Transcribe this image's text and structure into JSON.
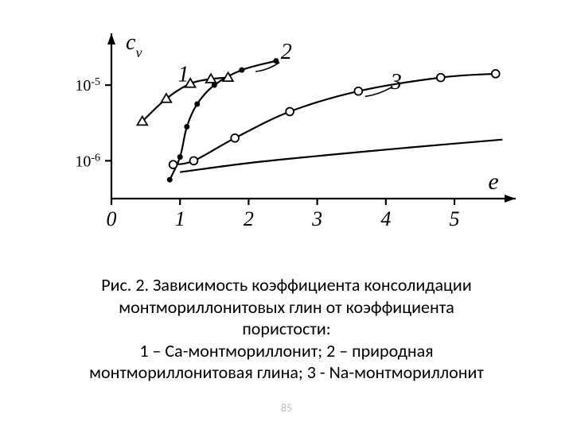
{
  "chart": {
    "type": "line",
    "background_color": "#ffffff",
    "stroke_color": "#000000",
    "stroke_width": 2.2,
    "axis": {
      "x": {
        "min": 0,
        "max": 5.8,
        "ticks": [
          0,
          1,
          2,
          3,
          4,
          5
        ],
        "label": "e",
        "label_italic": true,
        "tick_fontsize": 26
      },
      "y": {
        "min_exp": -6.5,
        "max_exp": -4.4,
        "ticks_exp": [
          -6,
          -5
        ],
        "label": "c",
        "label_sub": "v",
        "label_italic": true,
        "tick_fontsize": 20
      }
    },
    "series": [
      {
        "id": "1",
        "label": "1",
        "label_pos_e": 1.05,
        "label_pos_y": -4.95,
        "marker": "triangle",
        "marker_size": 9,
        "points_e": [
          0.45,
          0.8,
          1.15,
          1.45,
          1.7
        ],
        "points_y": [
          -5.48,
          -5.18,
          -4.98,
          -4.92,
          -4.9
        ]
      },
      {
        "id": "2",
        "label": "2",
        "label_pos_e": 2.55,
        "label_pos_y": -4.65,
        "marker": "dot",
        "marker_size": 5,
        "points_e": [
          0.85,
          1.0,
          1.1,
          1.25,
          1.5,
          1.9,
          2.4
        ],
        "points_y": [
          -6.25,
          -5.95,
          -5.55,
          -5.25,
          -5.0,
          -4.8,
          -4.68
        ]
      },
      {
        "id": "3",
        "label": "3",
        "label_pos_e": 4.15,
        "label_pos_y": -5.05,
        "marker": "circle",
        "marker_size": 7,
        "points_e": [
          0.9,
          1.2,
          1.8,
          2.6,
          3.6,
          4.8,
          5.6
        ],
        "points_y": [
          -6.05,
          -6.0,
          -5.7,
          -5.35,
          -5.08,
          -4.9,
          -4.85
        ]
      }
    ],
    "extra_curve": {
      "comment": "lower slow-rising branch toward right-bottom",
      "points_e": [
        1.0,
        2.0,
        3.2,
        4.4,
        5.7
      ],
      "points_y": [
        -6.15,
        -6.03,
        -5.92,
        -5.82,
        -5.72
      ]
    },
    "leader_lines": [
      {
        "from_e": 2.45,
        "from_y": -4.7,
        "to_e": 2.1,
        "to_y": -4.82
      },
      {
        "from_e": 4.1,
        "from_y": -5.02,
        "to_e": 3.7,
        "to_y": -5.15
      }
    ]
  },
  "caption": {
    "line1": "Рис. 2. Зависимость  коэффициента консолидации",
    "line2": "монтмориллонитовых глин от коэффициента",
    "line3": "пористости:",
    "line4": "1 – Са-монтмориллонит; 2 – природная",
    "line5": "монтмориллонитовая глина; 3 -  Na-монтмориллонит"
  },
  "page_number": "85"
}
